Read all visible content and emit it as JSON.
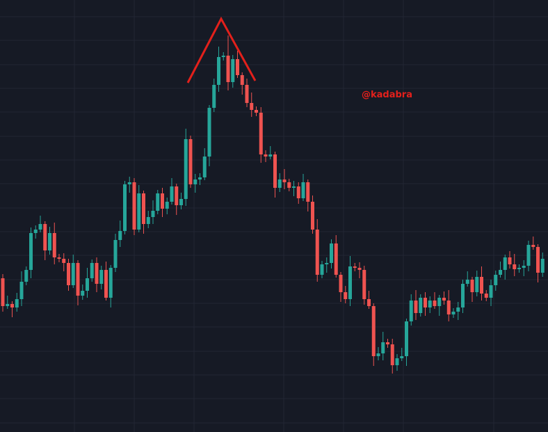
{
  "chart_data": {
    "type": "candlestick",
    "annotation": "@kadabra",
    "up_color": "#26a69a",
    "down_color": "#ef5350",
    "ylim": [
      0,
      621
    ],
    "open": [
      221,
      181,
      184,
      179,
      191,
      216,
      233,
      286,
      291,
      299,
      261,
      286,
      251,
      249,
      243,
      211,
      243,
      196,
      203,
      221,
      243,
      213,
      233,
      193,
      236,
      276,
      289,
      356,
      359,
      291,
      343,
      299,
      309,
      318,
      343,
      321,
      331,
      353,
      326,
      335,
      421,
      356,
      363,
      366,
      396,
      466,
      499,
      539,
      541,
      503,
      536,
      513,
      499,
      473,
      463,
      459,
      399,
      396,
      399,
      351,
      363,
      359,
      351,
      353,
      336,
      359,
      331,
      291,
      226,
      241,
      243,
      271,
      226,
      201,
      191,
      238,
      236,
      233,
      191,
      181,
      109,
      113,
      129,
      126,
      96,
      106,
      109,
      159,
      189,
      171,
      193,
      179,
      189,
      181,
      193,
      189,
      169,
      173,
      179,
      213,
      219,
      201,
      223,
      199,
      193,
      211,
      226,
      233,
      251,
      241,
      234,
      236,
      239,
      269,
      266,
      229
    ],
    "high": [
      227,
      196,
      188,
      200,
      231,
      238,
      294,
      297,
      311,
      303,
      295,
      301,
      256,
      257,
      249,
      255,
      247,
      212,
      236,
      248,
      251,
      239,
      245,
      240,
      285,
      304,
      361,
      367,
      365,
      355,
      347,
      318,
      333,
      348,
      351,
      337,
      365,
      357,
      344,
      436,
      426,
      371,
      372,
      408,
      470,
      508,
      554,
      546,
      570,
      542,
      548,
      517,
      508,
      488,
      468,
      467,
      405,
      411,
      403,
      372,
      378,
      364,
      361,
      359,
      371,
      363,
      340,
      306,
      246,
      251,
      277,
      283,
      230,
      210,
      253,
      243,
      244,
      239,
      203,
      185,
      122,
      144,
      134,
      134,
      112,
      121,
      163,
      198,
      204,
      198,
      201,
      195,
      201,
      197,
      202,
      204,
      178,
      187,
      219,
      231,
      223,
      232,
      238,
      204,
      219,
      232,
      245,
      255,
      260,
      256,
      241,
      247,
      275,
      281,
      270,
      258
    ],
    "low": [
      173,
      177,
      165,
      173,
      181,
      211,
      221,
      278,
      287,
      247,
      255,
      241,
      244,
      231,
      203,
      207,
      182,
      190,
      193,
      216,
      201,
      205,
      189,
      179,
      230,
      266,
      284,
      344,
      283,
      287,
      285,
      293,
      299,
      313,
      309,
      313,
      327,
      312,
      320,
      325,
      351,
      344,
      355,
      362,
      382,
      460,
      489,
      534,
      491,
      495,
      509,
      485,
      467,
      453,
      454,
      387,
      388,
      392,
      337,
      345,
      349,
      346,
      339,
      328,
      332,
      317,
      285,
      216,
      221,
      229,
      235,
      222,
      187,
      185,
      181,
      231,
      221,
      183,
      177,
      95,
      103,
      103,
      121,
      84,
      88,
      102,
      95,
      153,
      161,
      166,
      167,
      171,
      177,
      167,
      183,
      159,
      164,
      161,
      171,
      209,
      187,
      195,
      189,
      188,
      181,
      203,
      222,
      219,
      235,
      224,
      229,
      224,
      231,
      262,
      215,
      223
    ],
    "close": [
      181,
      184,
      179,
      191,
      216,
      233,
      286,
      291,
      299,
      261,
      286,
      251,
      249,
      243,
      211,
      243,
      196,
      203,
      221,
      243,
      213,
      233,
      193,
      236,
      276,
      289,
      356,
      359,
      291,
      343,
      299,
      309,
      318,
      343,
      321,
      331,
      353,
      326,
      335,
      421,
      356,
      363,
      366,
      396,
      466,
      499,
      539,
      541,
      503,
      536,
      513,
      499,
      473,
      463,
      459,
      399,
      396,
      399,
      351,
      363,
      359,
      351,
      353,
      336,
      359,
      331,
      291,
      226,
      241,
      243,
      271,
      226,
      201,
      191,
      238,
      236,
      233,
      191,
      181,
      109,
      113,
      129,
      126,
      96,
      106,
      109,
      159,
      189,
      171,
      193,
      179,
      189,
      181,
      193,
      189,
      169,
      173,
      179,
      213,
      219,
      201,
      223,
      199,
      193,
      211,
      226,
      233,
      251,
      241,
      234,
      236,
      239,
      269,
      266,
      229,
      249
    ]
  }
}
